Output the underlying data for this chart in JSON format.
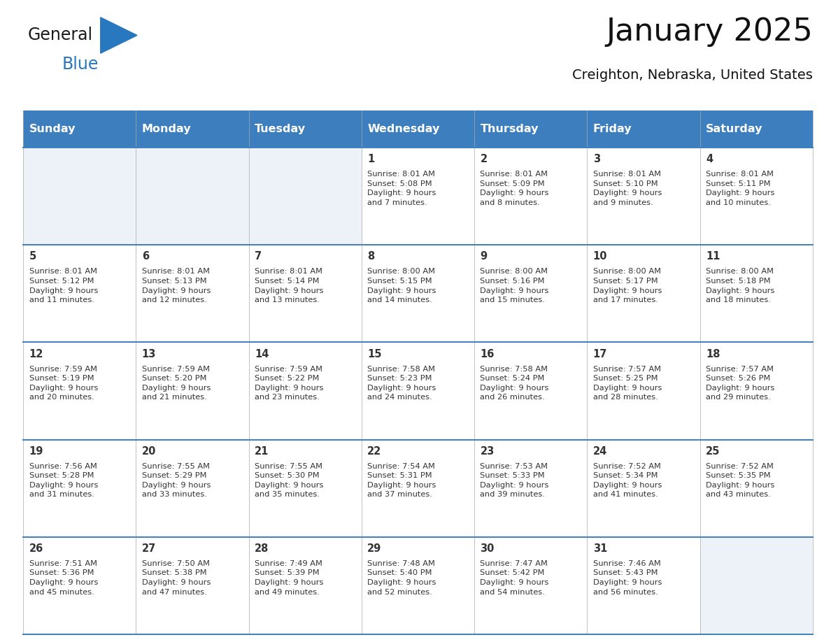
{
  "title": "January 2025",
  "subtitle": "Creighton, Nebraska, United States",
  "header_bg": "#3d7ebf",
  "header_text_color": "#ffffff",
  "cell_bg_light": "#edf2f8",
  "cell_bg_white": "#ffffff",
  "day_headers": [
    "Sunday",
    "Monday",
    "Tuesday",
    "Wednesday",
    "Thursday",
    "Friday",
    "Saturday"
  ],
  "grid_color": "#3d7ebf",
  "text_color": "#333333",
  "calendar_data": [
    [
      {
        "day": "",
        "info": ""
      },
      {
        "day": "",
        "info": ""
      },
      {
        "day": "",
        "info": ""
      },
      {
        "day": "1",
        "info": "Sunrise: 8:01 AM\nSunset: 5:08 PM\nDaylight: 9 hours\nand 7 minutes."
      },
      {
        "day": "2",
        "info": "Sunrise: 8:01 AM\nSunset: 5:09 PM\nDaylight: 9 hours\nand 8 minutes."
      },
      {
        "day": "3",
        "info": "Sunrise: 8:01 AM\nSunset: 5:10 PM\nDaylight: 9 hours\nand 9 minutes."
      },
      {
        "day": "4",
        "info": "Sunrise: 8:01 AM\nSunset: 5:11 PM\nDaylight: 9 hours\nand 10 minutes."
      }
    ],
    [
      {
        "day": "5",
        "info": "Sunrise: 8:01 AM\nSunset: 5:12 PM\nDaylight: 9 hours\nand 11 minutes."
      },
      {
        "day": "6",
        "info": "Sunrise: 8:01 AM\nSunset: 5:13 PM\nDaylight: 9 hours\nand 12 minutes."
      },
      {
        "day": "7",
        "info": "Sunrise: 8:01 AM\nSunset: 5:14 PM\nDaylight: 9 hours\nand 13 minutes."
      },
      {
        "day": "8",
        "info": "Sunrise: 8:00 AM\nSunset: 5:15 PM\nDaylight: 9 hours\nand 14 minutes."
      },
      {
        "day": "9",
        "info": "Sunrise: 8:00 AM\nSunset: 5:16 PM\nDaylight: 9 hours\nand 15 minutes."
      },
      {
        "day": "10",
        "info": "Sunrise: 8:00 AM\nSunset: 5:17 PM\nDaylight: 9 hours\nand 17 minutes."
      },
      {
        "day": "11",
        "info": "Sunrise: 8:00 AM\nSunset: 5:18 PM\nDaylight: 9 hours\nand 18 minutes."
      }
    ],
    [
      {
        "day": "12",
        "info": "Sunrise: 7:59 AM\nSunset: 5:19 PM\nDaylight: 9 hours\nand 20 minutes."
      },
      {
        "day": "13",
        "info": "Sunrise: 7:59 AM\nSunset: 5:20 PM\nDaylight: 9 hours\nand 21 minutes."
      },
      {
        "day": "14",
        "info": "Sunrise: 7:59 AM\nSunset: 5:22 PM\nDaylight: 9 hours\nand 23 minutes."
      },
      {
        "day": "15",
        "info": "Sunrise: 7:58 AM\nSunset: 5:23 PM\nDaylight: 9 hours\nand 24 minutes."
      },
      {
        "day": "16",
        "info": "Sunrise: 7:58 AM\nSunset: 5:24 PM\nDaylight: 9 hours\nand 26 minutes."
      },
      {
        "day": "17",
        "info": "Sunrise: 7:57 AM\nSunset: 5:25 PM\nDaylight: 9 hours\nand 28 minutes."
      },
      {
        "day": "18",
        "info": "Sunrise: 7:57 AM\nSunset: 5:26 PM\nDaylight: 9 hours\nand 29 minutes."
      }
    ],
    [
      {
        "day": "19",
        "info": "Sunrise: 7:56 AM\nSunset: 5:28 PM\nDaylight: 9 hours\nand 31 minutes."
      },
      {
        "day": "20",
        "info": "Sunrise: 7:55 AM\nSunset: 5:29 PM\nDaylight: 9 hours\nand 33 minutes."
      },
      {
        "day": "21",
        "info": "Sunrise: 7:55 AM\nSunset: 5:30 PM\nDaylight: 9 hours\nand 35 minutes."
      },
      {
        "day": "22",
        "info": "Sunrise: 7:54 AM\nSunset: 5:31 PM\nDaylight: 9 hours\nand 37 minutes."
      },
      {
        "day": "23",
        "info": "Sunrise: 7:53 AM\nSunset: 5:33 PM\nDaylight: 9 hours\nand 39 minutes."
      },
      {
        "day": "24",
        "info": "Sunrise: 7:52 AM\nSunset: 5:34 PM\nDaylight: 9 hours\nand 41 minutes."
      },
      {
        "day": "25",
        "info": "Sunrise: 7:52 AM\nSunset: 5:35 PM\nDaylight: 9 hours\nand 43 minutes."
      }
    ],
    [
      {
        "day": "26",
        "info": "Sunrise: 7:51 AM\nSunset: 5:36 PM\nDaylight: 9 hours\nand 45 minutes."
      },
      {
        "day": "27",
        "info": "Sunrise: 7:50 AM\nSunset: 5:38 PM\nDaylight: 9 hours\nand 47 minutes."
      },
      {
        "day": "28",
        "info": "Sunrise: 7:49 AM\nSunset: 5:39 PM\nDaylight: 9 hours\nand 49 minutes."
      },
      {
        "day": "29",
        "info": "Sunrise: 7:48 AM\nSunset: 5:40 PM\nDaylight: 9 hours\nand 52 minutes."
      },
      {
        "day": "30",
        "info": "Sunrise: 7:47 AM\nSunset: 5:42 PM\nDaylight: 9 hours\nand 54 minutes."
      },
      {
        "day": "31",
        "info": "Sunrise: 7:46 AM\nSunset: 5:43 PM\nDaylight: 9 hours\nand 56 minutes."
      },
      {
        "day": "",
        "info": ""
      }
    ]
  ],
  "logo_general_color": "#1a1a1a",
  "logo_blue_color": "#2878c0"
}
